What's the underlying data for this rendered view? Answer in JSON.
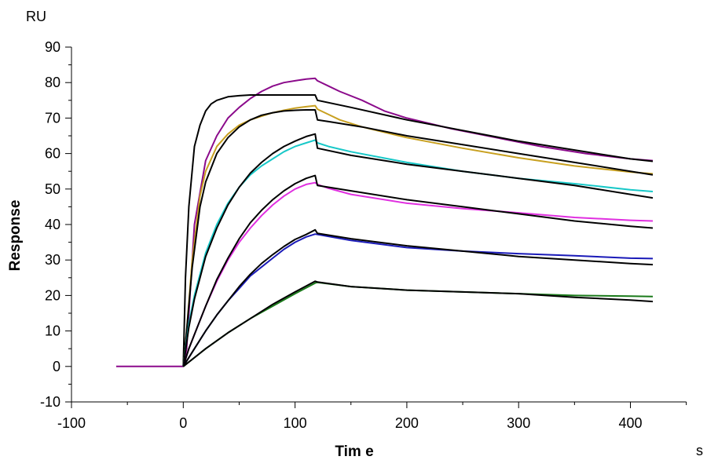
{
  "chart_data": {
    "type": "line",
    "title": "",
    "xlabel": "Tim e",
    "ylabel": "Response",
    "x_unit": "s",
    "y_unit": "RU",
    "xlim": [
      -100,
      450
    ],
    "ylim": [
      -10,
      90
    ],
    "x_ticks": [
      -100,
      0,
      100,
      200,
      300,
      400
    ],
    "y_ticks": [
      -10,
      0,
      10,
      20,
      30,
      40,
      50,
      60,
      70,
      80,
      90
    ],
    "grid": false,
    "legend": "none",
    "series": [
      {
        "color": "#8b0a8b",
        "x": [
          -60,
          -30,
          0,
          3,
          10,
          20,
          30,
          40,
          50,
          60,
          70,
          80,
          90,
          100,
          110,
          118,
          120,
          130,
          140,
          160,
          180,
          200,
          240,
          280,
          320,
          360,
          400,
          420
        ],
        "y": [
          0,
          0,
          0,
          5,
          40,
          58,
          65,
          70,
          73,
          75.5,
          77.5,
          79,
          80,
          80.5,
          81,
          81.2,
          80.5,
          79,
          77.5,
          75,
          72,
          70,
          67,
          64.5,
          62,
          60,
          58.5,
          58
        ]
      },
      {
        "color": "#000000",
        "x": [
          0,
          2,
          5,
          10,
          15,
          20,
          25,
          30,
          40,
          50,
          60,
          70,
          80,
          90,
          100,
          110,
          118,
          120,
          150,
          200,
          250,
          300,
          350,
          400,
          420
        ],
        "y": [
          0,
          25,
          45,
          62,
          68,
          72,
          74,
          75,
          76,
          76.3,
          76.5,
          76.5,
          76.5,
          76.5,
          76.5,
          76.5,
          76.5,
          75,
          73,
          69.5,
          66.5,
          63.5,
          61,
          58.5,
          57.8
        ]
      },
      {
        "color": "#c8a020",
        "x": [
          0,
          3,
          8,
          15,
          20,
          30,
          40,
          50,
          60,
          70,
          80,
          90,
          100,
          110,
          118,
          120,
          130,
          140,
          160,
          180,
          200,
          250,
          300,
          350,
          400,
          420
        ],
        "y": [
          0,
          10,
          30,
          48,
          55,
          62,
          65.5,
          68,
          69.5,
          70.5,
          71.5,
          72.2,
          72.8,
          73.2,
          73.5,
          72.5,
          71,
          69.5,
          67.5,
          66,
          64.5,
          61.5,
          58.8,
          56.5,
          54.8,
          54.3
        ]
      },
      {
        "color": "#000000",
        "x": [
          0,
          3,
          8,
          15,
          20,
          30,
          40,
          50,
          60,
          70,
          80,
          90,
          100,
          110,
          118,
          120,
          130,
          160,
          200,
          250,
          300,
          350,
          400,
          420
        ],
        "y": [
          0,
          10,
          28,
          45,
          52,
          60,
          64.5,
          67.5,
          69.5,
          70.8,
          71.5,
          72,
          72.2,
          72.3,
          72.3,
          69.5,
          69,
          67.5,
          65,
          62.5,
          60,
          57.5,
          55,
          54
        ]
      },
      {
        "color": "#18c8c8",
        "x": [
          0,
          5,
          10,
          20,
          30,
          40,
          50,
          60,
          70,
          80,
          90,
          100,
          110,
          118,
          120,
          130,
          150,
          200,
          250,
          300,
          350,
          400,
          420
        ],
        "y": [
          0,
          12,
          20,
          32,
          40,
          46,
          50.5,
          54,
          56.5,
          58.5,
          60.5,
          62,
          63,
          63.8,
          63,
          62,
          60.5,
          57.5,
          55,
          53,
          51.5,
          49.8,
          49.3
        ]
      },
      {
        "color": "#000000",
        "x": [
          0,
          5,
          10,
          20,
          30,
          40,
          50,
          60,
          70,
          80,
          90,
          100,
          110,
          118,
          120,
          150,
          200,
          250,
          300,
          350,
          400,
          420
        ],
        "y": [
          0,
          11,
          19,
          31,
          39,
          45.5,
          50.5,
          54.5,
          57.5,
          60,
          62,
          63.5,
          64.8,
          65.5,
          61.5,
          59.5,
          57,
          55,
          53,
          51,
          48.5,
          47.5
        ]
      },
      {
        "color": "#e030e0",
        "x": [
          0,
          5,
          10,
          20,
          30,
          40,
          50,
          60,
          70,
          80,
          90,
          100,
          110,
          118,
          120,
          130,
          150,
          200,
          250,
          300,
          350,
          400,
          420
        ],
        "y": [
          0,
          5,
          9,
          17,
          24,
          30,
          35,
          39,
          42.5,
          45.5,
          48,
          50,
          51.3,
          51.8,
          51.3,
          50.2,
          48.5,
          46,
          44.5,
          43.3,
          42,
          41.2,
          41
        ]
      },
      {
        "color": "#000000",
        "x": [
          0,
          5,
          10,
          20,
          30,
          40,
          50,
          60,
          70,
          80,
          90,
          100,
          110,
          118,
          120,
          150,
          200,
          250,
          300,
          350,
          400,
          420
        ],
        "y": [
          0,
          5,
          9,
          17,
          24.5,
          30.5,
          36,
          40.5,
          44,
          47,
          49.5,
          51.5,
          53,
          53.8,
          51,
          49.5,
          47,
          45,
          43,
          41,
          39.5,
          39
        ]
      },
      {
        "color": "#1a1ab8",
        "x": [
          0,
          10,
          20,
          30,
          40,
          50,
          60,
          70,
          80,
          90,
          100,
          110,
          118,
          120,
          150,
          200,
          250,
          300,
          350,
          400,
          420
        ],
        "y": [
          0,
          5,
          10,
          14.5,
          18.5,
          22,
          25.5,
          28,
          30.5,
          33,
          35,
          36.5,
          37.3,
          37.2,
          35.5,
          33.5,
          32.5,
          31.8,
          31.2,
          30.5,
          30.4
        ]
      },
      {
        "color": "#000000",
        "x": [
          0,
          10,
          20,
          30,
          40,
          50,
          60,
          70,
          80,
          90,
          100,
          110,
          118,
          120,
          150,
          200,
          250,
          300,
          350,
          400,
          420
        ],
        "y": [
          0,
          5,
          10,
          14.5,
          18.5,
          22.5,
          26,
          29,
          31.5,
          33.8,
          35.8,
          37.2,
          38.5,
          37.5,
          36,
          34,
          32.5,
          31,
          30,
          29,
          28.7
        ]
      },
      {
        "color": "#1a7a1a",
        "x": [
          0,
          20,
          40,
          60,
          80,
          100,
          118,
          120,
          150,
          200,
          250,
          300,
          350,
          400,
          420
        ],
        "y": [
          0,
          5,
          9.5,
          13.5,
          17,
          20.5,
          23.5,
          23.7,
          22.5,
          21.5,
          21,
          20.5,
          20,
          19.8,
          19.7
        ]
      },
      {
        "color": "#000000",
        "x": [
          0,
          20,
          40,
          60,
          80,
          100,
          118,
          120,
          150,
          200,
          250,
          300,
          350,
          400,
          420
        ],
        "y": [
          0,
          5,
          9.5,
          13.5,
          17.5,
          21,
          24,
          23.8,
          22.5,
          21.5,
          21,
          20.5,
          19.5,
          18.7,
          18.3
        ]
      }
    ]
  }
}
